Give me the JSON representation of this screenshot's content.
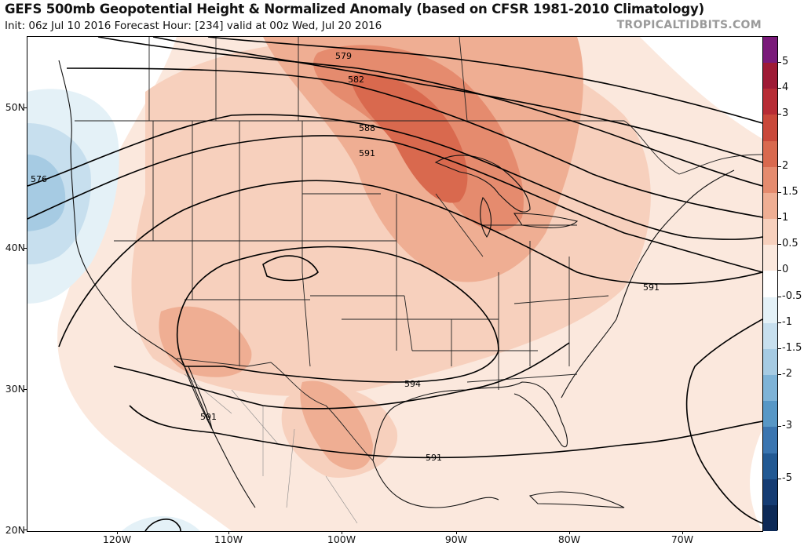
{
  "header": {
    "title": "GEFS 500mb Geopotential Height & Normalized Anomaly (based on CFSR 1981-2010 Climatology)",
    "subtitle": "Init: 06z Jul 10 2016   Forecast Hour: [234]   valid at 00z Wed, Jul 20 2016",
    "credit": "TROPICALTIDBITS.COM"
  },
  "axes": {
    "lat_labels": [
      "50N",
      "40N",
      "30N",
      "20N"
    ],
    "lon_labels": [
      "120W",
      "110W",
      "100W",
      "90W",
      "80W",
      "70W"
    ]
  },
  "contour_labels": [
    "579",
    "582",
    "588",
    "591",
    "576",
    "591",
    "594",
    "591",
    "591"
  ],
  "colorbar": {
    "labels": [
      "5",
      "4",
      "3",
      "2",
      "1.5",
      "1",
      "0.5",
      "0",
      "-0.5",
      "-1",
      "-1.5",
      "-2",
      "-3",
      "-5"
    ],
    "colors": [
      "#7a1a7a",
      "#9e1a35",
      "#b72c35",
      "#c9483a",
      "#d9694e",
      "#e58b6e",
      "#efae93",
      "#f7d0bd",
      "#fbe8dd",
      "#ffffff",
      "#e4f1f7",
      "#c7dfee",
      "#a6cbe3",
      "#7eb3d7",
      "#5797c6",
      "#3a75b0",
      "#225993",
      "#153c73",
      "#0d2a57"
    ]
  },
  "map": {
    "anomaly_colors": {
      "neg_strong": "#a6cbe3",
      "neg_mod": "#c7dfee",
      "neg_weak": "#e4f1f7",
      "neutral": "#ffffff",
      "pos_weak": "#fbe8dd",
      "pos_light": "#f7d0bd",
      "pos_mod": "#efae93",
      "pos_strong": "#e58b6e",
      "pos_max": "#d9694e"
    }
  }
}
